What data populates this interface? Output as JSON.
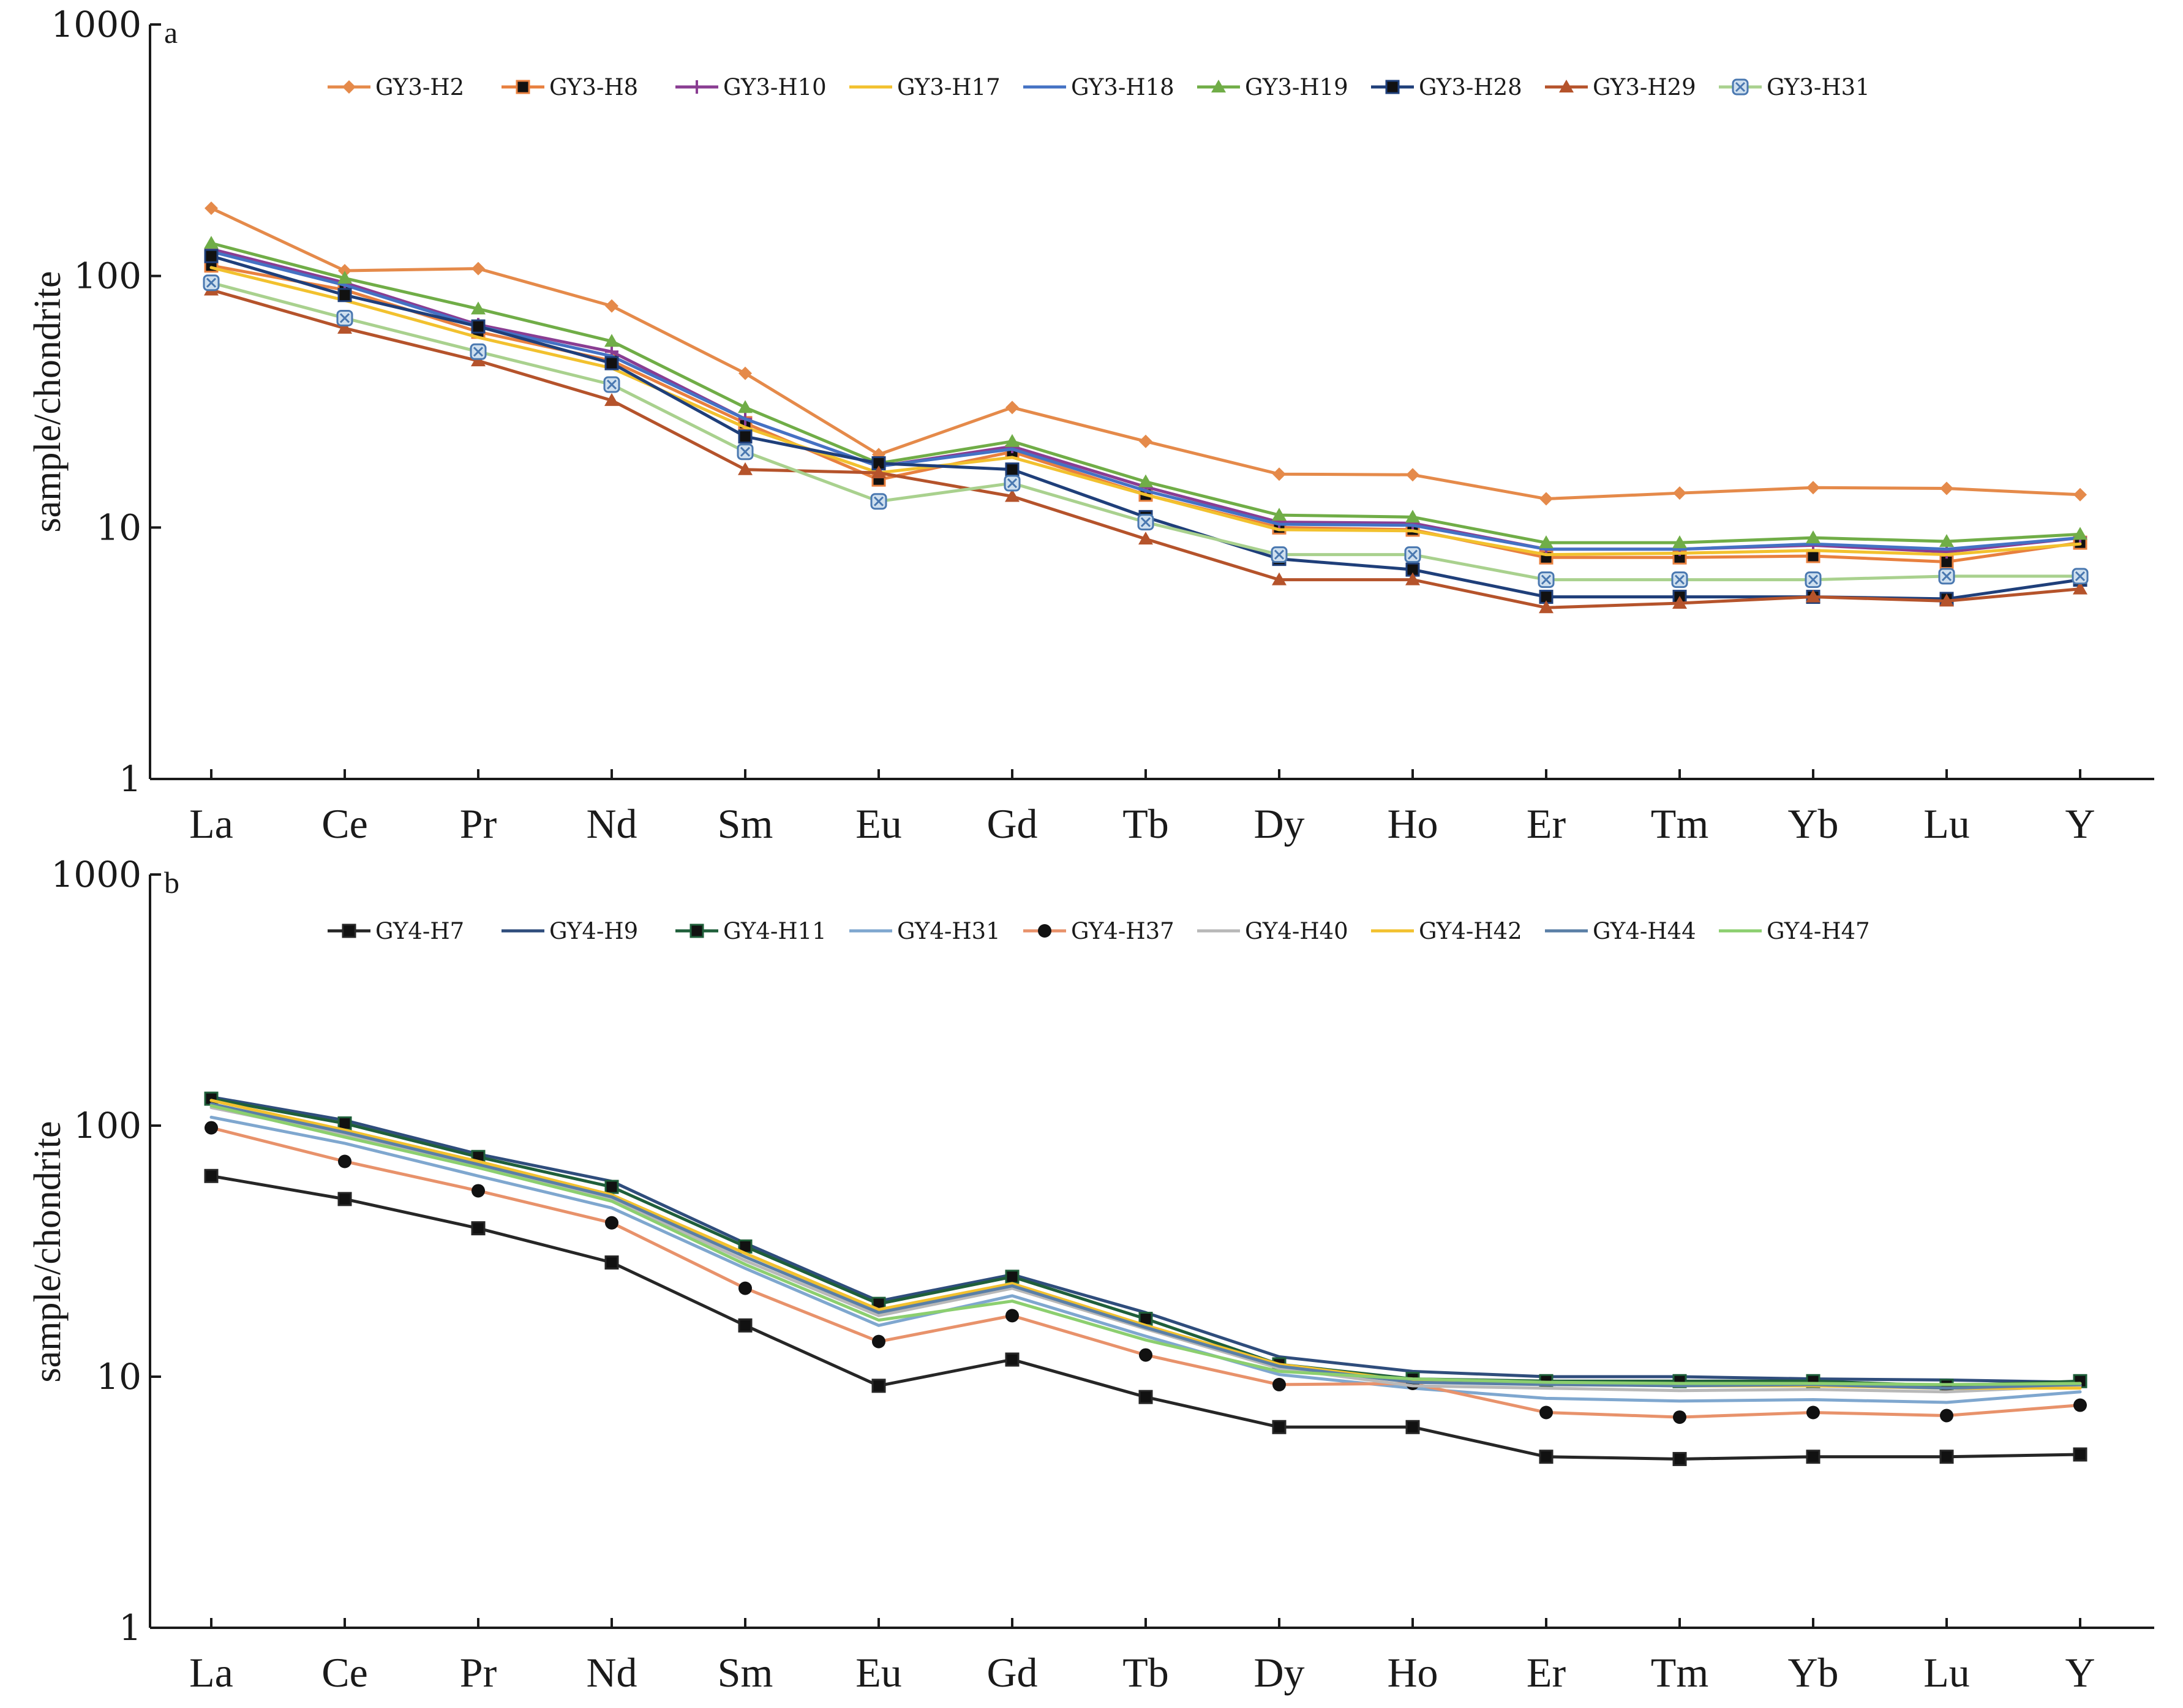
{
  "colors": {
    "axis": "#1a1a1a",
    "background": "#ffffff"
  },
  "chart_data": [
    {
      "panel_label": "a",
      "type": "line",
      "ylabel": "sample/chondrite",
      "xlabel": "",
      "yscale": "log",
      "ylim": [
        1,
        1000
      ],
      "yticks": [
        1,
        10,
        100,
        1000
      ],
      "ytick_labels": [
        "1",
        "10",
        "100",
        "1000"
      ],
      "categories": [
        "La",
        "Ce",
        "Pr",
        "Nd",
        "Sm",
        "Eu",
        "Gd",
        "Tb",
        "Dy",
        "Ho",
        "Er",
        "Tm",
        "Yb",
        "Lu",
        "Y"
      ],
      "legend": "top",
      "series": [
        {
          "name": "GY3-H2",
          "color": "#e58a4a",
          "marker": "diamond",
          "values": [
            186,
            105,
            107,
            76,
            41,
            19.5,
            30,
            22,
            16.3,
            16.2,
            13,
            13.7,
            14.4,
            14.3,
            13.5
          ]
        },
        {
          "name": "GY3-H8",
          "color": "#e8803f",
          "marker": "square",
          "values": [
            110,
            88,
            60,
            46,
            26,
            15.5,
            20,
            13.5,
            10,
            9.8,
            7.6,
            7.6,
            7.7,
            7.3,
            8.7
          ]
        },
        {
          "name": "GY3-H10",
          "color": "#8a3d92",
          "marker": "plus",
          "values": [
            128,
            94,
            64,
            50,
            27,
            17.5,
            21,
            14.5,
            10.5,
            10.4,
            8.2,
            8.2,
            8.5,
            8.0,
            9.1
          ]
        },
        {
          "name": "GY3-H17",
          "color": "#f2c12e",
          "marker": "none",
          "values": [
            108,
            80,
            57,
            43,
            25,
            16.5,
            19,
            13.5,
            9.8,
            9.7,
            7.8,
            7.9,
            8.1,
            7.8,
            8.6
          ]
        },
        {
          "name": "GY3-H18",
          "color": "#4472c4",
          "marker": "none",
          "values": [
            125,
            92,
            63,
            48,
            27,
            17.5,
            20.5,
            14,
            10.3,
            10.2,
            8.2,
            8.2,
            8.6,
            8.2,
            9.1
          ]
        },
        {
          "name": "GY3-H19",
          "color": "#70ad47",
          "marker": "triangle",
          "values": [
            135,
            98,
            74,
            55,
            30,
            18,
            22,
            15.2,
            11.2,
            11,
            8.7,
            8.7,
            9.1,
            8.8,
            9.4
          ]
        },
        {
          "name": "GY3-H28",
          "color": "#1f3f7a",
          "marker": "square",
          "values": [
            120,
            84,
            63,
            45,
            23,
            18,
            17,
            11,
            7.5,
            6.8,
            5.3,
            5.3,
            5.3,
            5.2,
            6.2
          ]
        },
        {
          "name": "GY3-H29",
          "color": "#b5532b",
          "marker": "triangle",
          "values": [
            88,
            62,
            46,
            32,
            17,
            16.5,
            13.3,
            9,
            6.2,
            6.2,
            4.8,
            5.0,
            5.3,
            5.1,
            5.7
          ]
        },
        {
          "name": "GY3-H31",
          "color": "#a9d18e",
          "marker": "circle-x",
          "values": [
            94,
            68,
            50,
            37,
            20,
            12.7,
            15,
            10.5,
            7.8,
            7.8,
            6.2,
            6.2,
            6.2,
            6.4,
            6.4
          ]
        }
      ]
    },
    {
      "panel_label": "b",
      "type": "line",
      "ylabel": "sample/chondrite",
      "xlabel": "",
      "yscale": "log",
      "ylim": [
        1,
        1000
      ],
      "yticks": [
        1,
        10,
        100,
        1000
      ],
      "ytick_labels": [
        "1",
        "10",
        "100",
        "1000"
      ],
      "categories": [
        "La",
        "Ce",
        "Pr",
        "Nd",
        "Sm",
        "Eu",
        "Gd",
        "Tb",
        "Dy",
        "Ho",
        "Er",
        "Tm",
        "Yb",
        "Lu",
        "Y"
      ],
      "legend": "top",
      "series": [
        {
          "name": "GY4-H7",
          "color": "#262626",
          "marker": "square",
          "values": [
            63,
            51,
            39,
            28.5,
            16,
            9.2,
            11.7,
            8.3,
            6.3,
            6.3,
            4.8,
            4.7,
            4.8,
            4.8,
            4.9
          ]
        },
        {
          "name": "GY4-H9",
          "color": "#2f4d7c",
          "marker": "none",
          "values": [
            130,
            105,
            77,
            60,
            34,
            20,
            25.5,
            18,
            12,
            10.5,
            10,
            10,
            9.8,
            9.7,
            9.5
          ]
        },
        {
          "name": "GY4-H11",
          "color": "#1f5f3a",
          "marker": "square",
          "values": [
            128,
            102,
            75,
            57,
            33,
            19.5,
            25,
            17,
            11.2,
            9.8,
            9.6,
            9.6,
            9.6,
            9.2,
            9.6
          ]
        },
        {
          "name": "GY4-H31",
          "color": "#7fa7cf",
          "marker": "none",
          "values": [
            108,
            85,
            63,
            47,
            27,
            16,
            21,
            14.5,
            10.2,
            9.0,
            8.2,
            8.0,
            8.1,
            7.9,
            8.7
          ]
        },
        {
          "name": "GY4-H37",
          "color": "#e8926b",
          "marker": "circle",
          "values": [
            98,
            72,
            55,
            41,
            22.5,
            13.8,
            17.5,
            12.2,
            9.3,
            9.4,
            7.2,
            6.9,
            7.2,
            7.0,
            7.7
          ]
        },
        {
          "name": "GY4-H40",
          "color": "#b8b8b8",
          "marker": "none",
          "values": [
            118,
            92,
            68,
            51,
            29,
            17.5,
            22.5,
            15.5,
            10.8,
            9.2,
            9.0,
            8.8,
            8.9,
            8.7,
            9.2
          ]
        },
        {
          "name": "GY4-H42",
          "color": "#f2c12e",
          "marker": "none",
          "values": [
            126,
            96,
            72,
            53,
            31,
            18.5,
            23.5,
            16,
            11.2,
            9.6,
            9.3,
            9.2,
            9.2,
            9.0,
            9.0
          ]
        },
        {
          "name": "GY4-H44",
          "color": "#5a7fa6",
          "marker": "none",
          "values": [
            122,
            94,
            70,
            52,
            30,
            18,
            23,
            15.7,
            11,
            9.5,
            9.3,
            9.2,
            9.3,
            9.0,
            9.3
          ]
        },
        {
          "name": "GY4-H47",
          "color": "#8ccf6f",
          "marker": "none",
          "values": [
            120,
            90,
            68,
            50,
            28,
            16.8,
            20,
            14,
            10.5,
            9.8,
            9.5,
            9.4,
            9.4,
            9.3,
            9.4
          ]
        }
      ]
    }
  ]
}
